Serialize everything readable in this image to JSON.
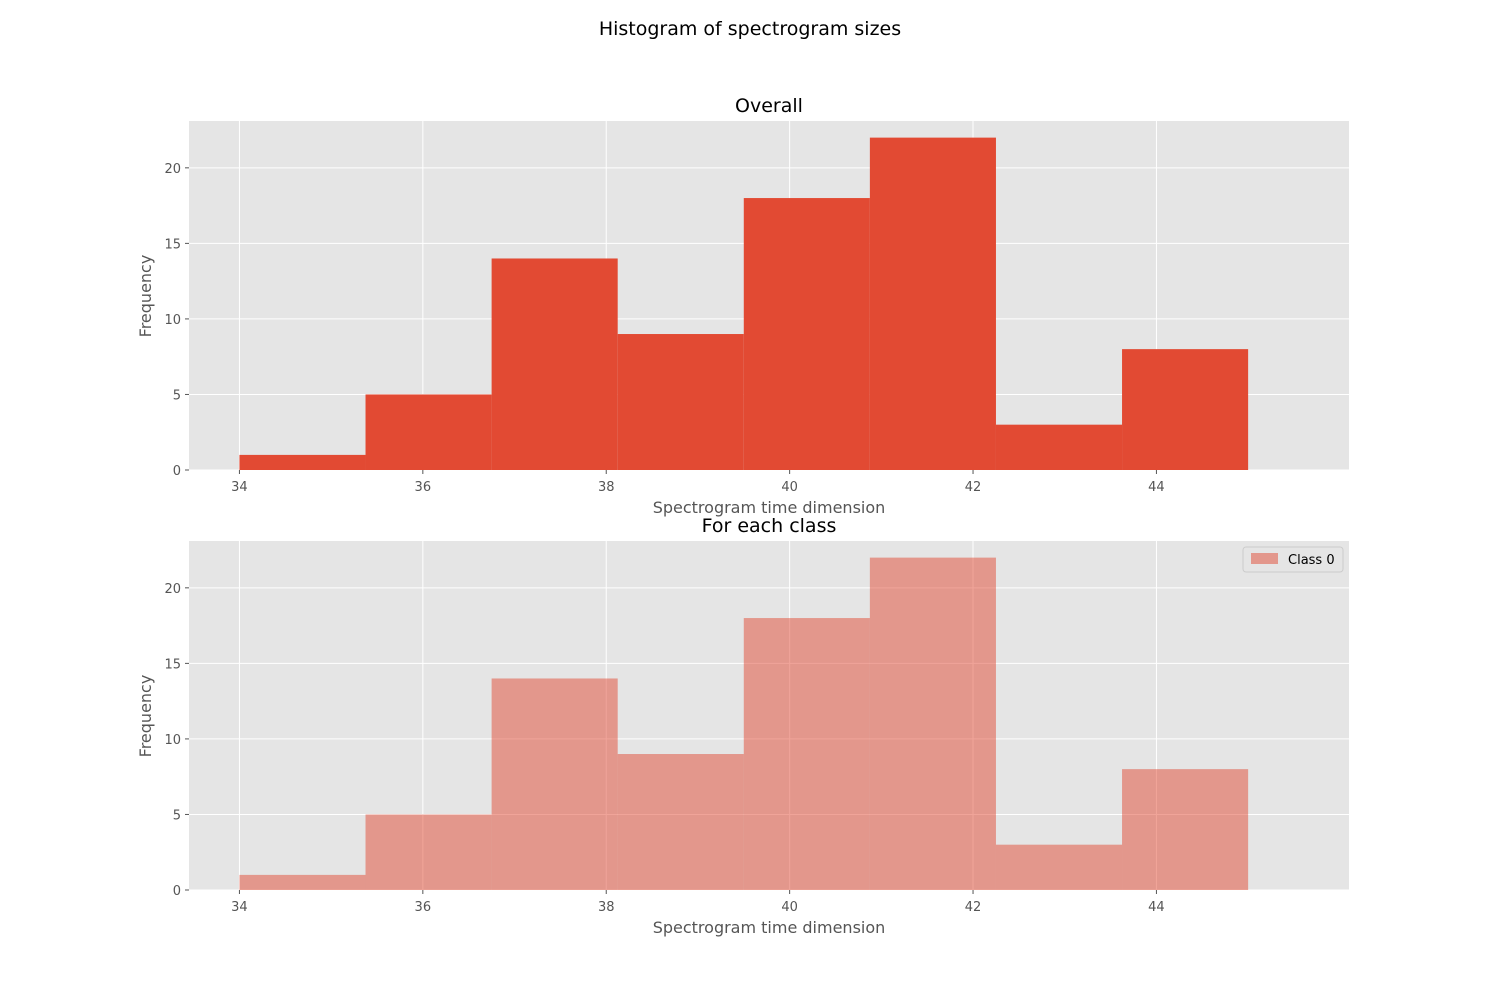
{
  "figure": {
    "suptitle": "Histogram of spectrogram sizes"
  },
  "chart_data": [
    {
      "type": "bar",
      "title": "Overall",
      "xlabel": "Spectrogram time dimension",
      "ylabel": "Frequency",
      "bin_edges": [
        34,
        35.375,
        36.75,
        38.125,
        39.5,
        40.875,
        42.25,
        43.625,
        45
      ],
      "values": [
        1,
        5,
        14,
        9,
        18,
        22,
        3,
        8
      ],
      "xlim": [
        33.45,
        46.1
      ],
      "ylim": [
        0,
        23.1
      ],
      "xticks": [
        34,
        36,
        38,
        40,
        42,
        44
      ],
      "yticks": [
        0,
        5,
        10,
        15,
        20
      ],
      "color": "#E24A33",
      "opacity": 1.0,
      "grid": true,
      "background": "#E5E5E5"
    },
    {
      "type": "bar",
      "title": "For each class",
      "xlabel": "Spectrogram time dimension",
      "ylabel": "Frequency",
      "bin_edges": [
        34,
        35.375,
        36.75,
        38.125,
        39.5,
        40.875,
        42.25,
        43.625,
        45
      ],
      "series": [
        {
          "name": "Class 0",
          "values": [
            1,
            5,
            14,
            9,
            18,
            22,
            3,
            8
          ]
        }
      ],
      "xlim": [
        33.45,
        46.1
      ],
      "ylim": [
        0,
        23.1
      ],
      "xticks": [
        34,
        36,
        38,
        40,
        42,
        44
      ],
      "yticks": [
        0,
        5,
        10,
        15,
        20
      ],
      "color": "#E24A33",
      "opacity": 0.5,
      "legend": "top-right",
      "grid": true,
      "background": "#E5E5E5"
    }
  ]
}
